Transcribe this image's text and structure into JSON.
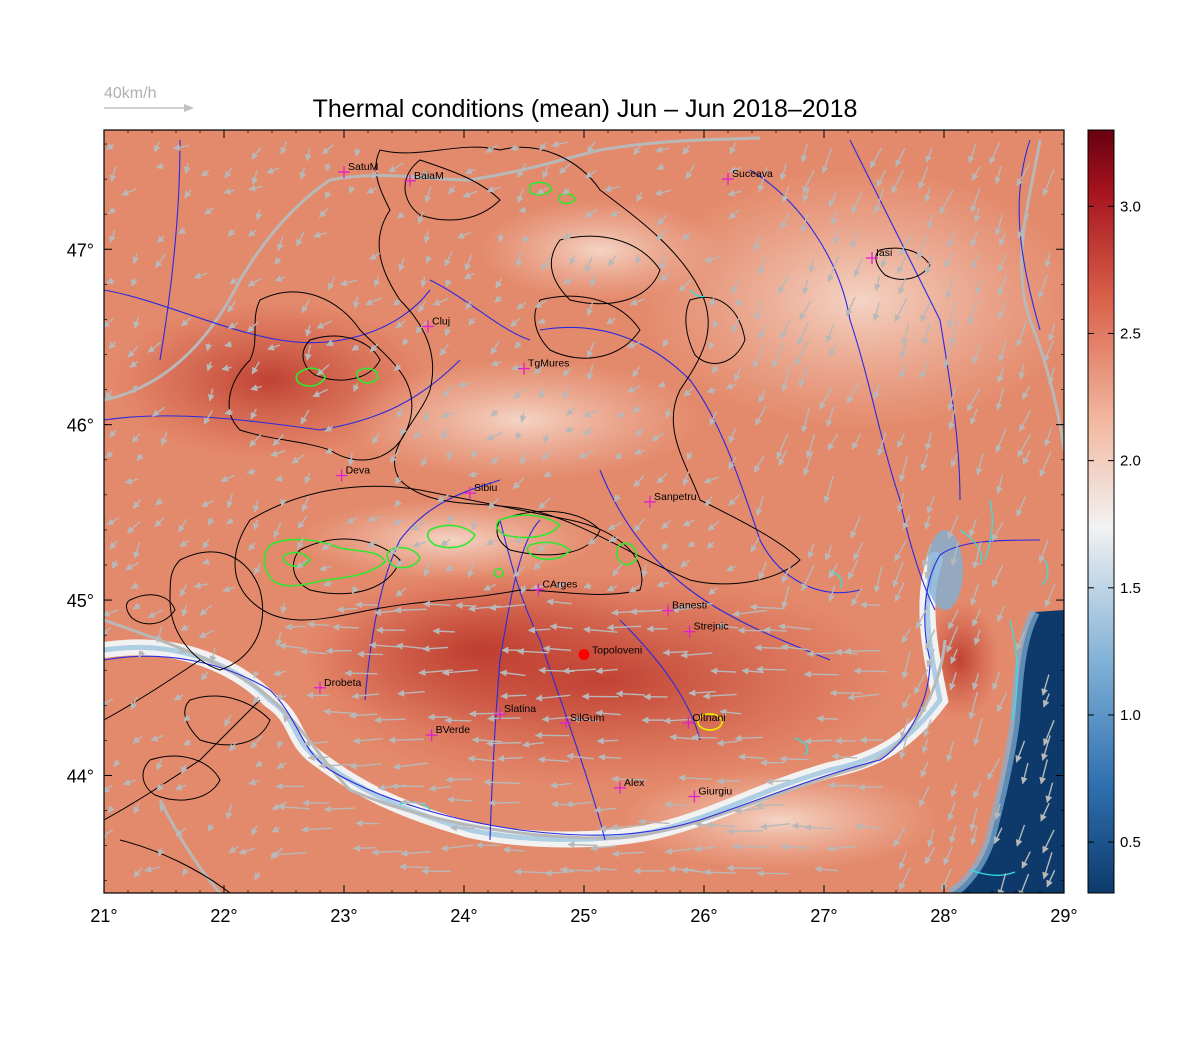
{
  "title": "Thermal conditions (mean) Jun – Jun  2018–2018",
  "wind_scale_label": "40km/h",
  "colorbar": {
    "ticks": [
      "0.5",
      "1.0",
      "1.5",
      "2.0",
      "2.5",
      "3.0"
    ],
    "range": [
      0.3,
      3.3
    ],
    "colors": [
      "#0d3a6b",
      "#2f6faf",
      "#7fb0d6",
      "#f2f2f2",
      "#f2b79f",
      "#d9604a",
      "#a5141e",
      "#670010"
    ]
  },
  "axes": {
    "lon_range": [
      21,
      29
    ],
    "lat_range": [
      43.33,
      47.68
    ],
    "x_ticks": [
      "21°",
      "22°",
      "23°",
      "24°",
      "25°",
      "26°",
      "27°",
      "28°",
      "29°"
    ],
    "y_ticks": [
      "44°",
      "45°",
      "46°",
      "47°"
    ]
  },
  "colors": {
    "background_field": "#e48a6c",
    "hot_field": "#c9493a",
    "cold_field": "#0d3a6b",
    "rivers": "#2a2ae0",
    "borders": "#b8b8b8",
    "contours": "#000000",
    "high_contours": "#2ee82e",
    "coast_contours": "#33e0e0",
    "city_marker": "#e020d0",
    "highlight_marker": "#ff0000",
    "wind_arrows": "#b8b8b8"
  },
  "cities": [
    {
      "name": "SatuM",
      "lon": 23.0,
      "lat": 47.44
    },
    {
      "name": "BaiaM",
      "lon": 23.55,
      "lat": 47.39
    },
    {
      "name": "Suceava",
      "lon": 26.2,
      "lat": 47.4
    },
    {
      "name": "Iasi",
      "lon": 27.4,
      "lat": 46.95
    },
    {
      "name": "Cluj",
      "lon": 23.7,
      "lat": 46.56
    },
    {
      "name": "TgMures",
      "lon": 24.5,
      "lat": 46.32
    },
    {
      "name": "Deva",
      "lon": 22.98,
      "lat": 45.71
    },
    {
      "name": "Sibiu",
      "lon": 24.05,
      "lat": 45.61
    },
    {
      "name": "Sanpetru",
      "lon": 25.55,
      "lat": 45.56
    },
    {
      "name": "CArges",
      "lon": 24.62,
      "lat": 45.06
    },
    {
      "name": "Banesti",
      "lon": 25.7,
      "lat": 44.94
    },
    {
      "name": "Strejnic",
      "lon": 25.88,
      "lat": 44.82
    },
    {
      "name": "Drobeta",
      "lon": 22.8,
      "lat": 44.5
    },
    {
      "name": "Slatina",
      "lon": 24.3,
      "lat": 44.35
    },
    {
      "name": "SilGum",
      "lon": 24.85,
      "lat": 44.3
    },
    {
      "name": "Oltnani",
      "lon": 25.87,
      "lat": 44.3
    },
    {
      "name": "BVerde",
      "lon": 23.73,
      "lat": 44.23
    },
    {
      "name": "Alex",
      "lon": 25.3,
      "lat": 43.93
    },
    {
      "name": "Giurgiu",
      "lon": 25.92,
      "lat": 43.88
    }
  ],
  "highlight": {
    "name": "Topoloveni",
    "lon": 25.0,
    "lat": 44.69
  }
}
